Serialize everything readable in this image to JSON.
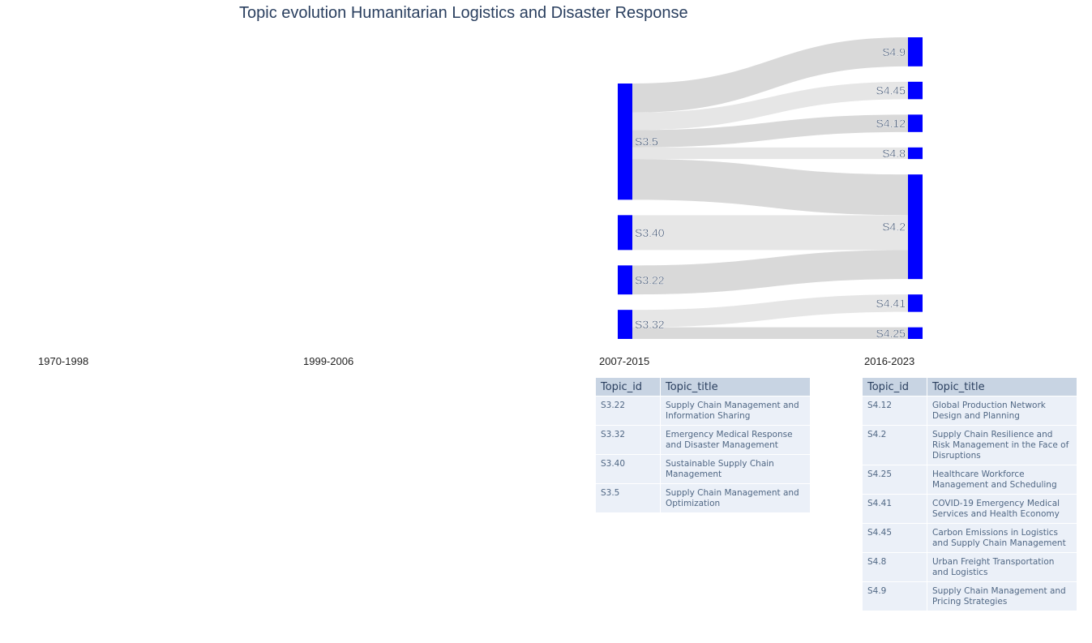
{
  "title": "Topic evolution Humanitarian Logistics and Disaster Response",
  "periods": [
    "1970-1998",
    "1999-2006",
    "2007-2015",
    "2016-2023"
  ],
  "colors": {
    "node": "#0000ff",
    "link": "#d9d9d9",
    "link_alt": "#e6e6e6",
    "header": "#c8d4e3",
    "cell": "#ebf0f8"
  },
  "chart_data": {
    "type": "sankey",
    "title": "Topic evolution Humanitarian Logistics and Disaster Response",
    "nodes": [
      {
        "id": "S3.5",
        "column": "2007-2015"
      },
      {
        "id": "S3.40",
        "column": "2007-2015"
      },
      {
        "id": "S3.22",
        "column": "2007-2015"
      },
      {
        "id": "S3.32",
        "column": "2007-2015"
      },
      {
        "id": "S4.9",
        "column": "2016-2023"
      },
      {
        "id": "S4.45",
        "column": "2016-2023"
      },
      {
        "id": "S4.12",
        "column": "2016-2023"
      },
      {
        "id": "S4.8",
        "column": "2016-2023"
      },
      {
        "id": "S4.2",
        "column": "2016-2023"
      },
      {
        "id": "S4.41",
        "column": "2016-2023"
      },
      {
        "id": "S4.25",
        "column": "2016-2023"
      }
    ],
    "links": [
      {
        "source": "S3.5",
        "target": "S4.9",
        "value": 5
      },
      {
        "source": "S3.5",
        "target": "S4.45",
        "value": 3
      },
      {
        "source": "S3.5",
        "target": "S4.12",
        "value": 3
      },
      {
        "source": "S3.5",
        "target": "S4.8",
        "value": 2
      },
      {
        "source": "S3.5",
        "target": "S4.2",
        "value": 7
      },
      {
        "source": "S3.40",
        "target": "S4.2",
        "value": 6
      },
      {
        "source": "S3.22",
        "target": "S4.2",
        "value": 5
      },
      {
        "source": "S3.32",
        "target": "S4.41",
        "value": 3
      },
      {
        "source": "S3.32",
        "target": "S4.25",
        "value": 2
      }
    ]
  },
  "tables": [
    {
      "period": "2007-2015",
      "headers": [
        "Topic_id",
        "Topic_title"
      ],
      "rows": [
        {
          "id": "S3.22",
          "title": "Supply Chain Management and Information Sharing"
        },
        {
          "id": "S3.32",
          "title": "Emergency Medical Response and Disaster Management"
        },
        {
          "id": "S3.40",
          "title": "Sustainable Supply Chain Management"
        },
        {
          "id": "S3.5",
          "title": "Supply Chain Management and Optimization"
        }
      ]
    },
    {
      "period": "2016-2023",
      "headers": [
        "Topic_id",
        "Topic_title"
      ],
      "rows": [
        {
          "id": "S4.12",
          "title": "Global Production Network Design and Planning"
        },
        {
          "id": "S4.2",
          "title": "Supply Chain Resilience and Risk Management in the Face of Disruptions"
        },
        {
          "id": "S4.25",
          "title": "Healthcare Workforce Management and Scheduling"
        },
        {
          "id": "S4.41",
          "title": "COVID-19 Emergency Medical Services and Health Economy"
        },
        {
          "id": "S4.45",
          "title": "Carbon Emissions in Logistics and Supply Chain Management"
        },
        {
          "id": "S4.8",
          "title": "Urban Freight Transportation and Logistics"
        },
        {
          "id": "S4.9",
          "title": "Supply Chain Management and Pricing Strategies"
        }
      ]
    }
  ]
}
